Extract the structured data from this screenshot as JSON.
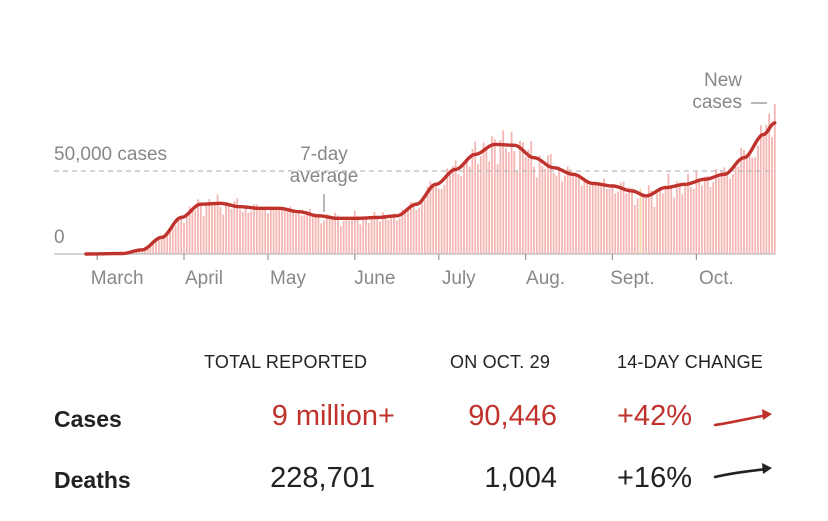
{
  "chart_data": {
    "type": "bar",
    "title": "",
    "xlabel": "",
    "ylabel": "",
    "ylim": [
      0,
      90000
    ],
    "y_gridline": {
      "value": 50000,
      "label": "50,000 cases"
    },
    "y_zero_label": "0",
    "x_tick_labels": [
      "March",
      "April",
      "May",
      "June",
      "July",
      "Aug.",
      "Sept.",
      "Oct."
    ],
    "annotations": {
      "avg_line": [
        "7-day",
        "average"
      ],
      "new_cases": [
        "New",
        "cases"
      ]
    },
    "series": [
      {
        "name": "New cases",
        "kind": "bar",
        "color": "#f4b6b3"
      },
      {
        "name": "7-day average",
        "kind": "line",
        "color": "#c0322c"
      }
    ],
    "avg_points": [
      [
        "2020-02-26",
        0
      ],
      [
        "2020-03-10",
        300
      ],
      [
        "2020-03-17",
        2500
      ],
      [
        "2020-03-24",
        10000
      ],
      [
        "2020-03-31",
        22000
      ],
      [
        "2020-04-07",
        30000
      ],
      [
        "2020-04-14",
        30500
      ],
      [
        "2020-04-21",
        28500
      ],
      [
        "2020-04-28",
        27500
      ],
      [
        "2020-05-05",
        27500
      ],
      [
        "2020-05-12",
        25500
      ],
      [
        "2020-05-19",
        23000
      ],
      [
        "2020-05-26",
        21500
      ],
      [
        "2020-06-02",
        21500
      ],
      [
        "2020-06-09",
        22000
      ],
      [
        "2020-06-16",
        23000
      ],
      [
        "2020-06-23",
        30000
      ],
      [
        "2020-06-30",
        42000
      ],
      [
        "2020-07-07",
        51000
      ],
      [
        "2020-07-14",
        60000
      ],
      [
        "2020-07-21",
        66000
      ],
      [
        "2020-07-28",
        65500
      ],
      [
        "2020-08-04",
        58000
      ],
      [
        "2020-08-11",
        52000
      ],
      [
        "2020-08-18",
        48000
      ],
      [
        "2020-08-25",
        42500
      ],
      [
        "2020-09-01",
        41000
      ],
      [
        "2020-09-08",
        38000
      ],
      [
        "2020-09-13",
        35000
      ],
      [
        "2020-09-20",
        40000
      ],
      [
        "2020-09-27",
        42000
      ],
      [
        "2020-10-04",
        45000
      ],
      [
        "2020-10-11",
        48000
      ],
      [
        "2020-10-18",
        58000
      ],
      [
        "2020-10-25",
        72000
      ],
      [
        "2020-10-29",
        79000
      ]
    ]
  },
  "stats": {
    "headers": {
      "total": "TOTAL REPORTED",
      "day": "ON OCT. 29",
      "change": "14-DAY CHANGE"
    },
    "rows": [
      {
        "label": "Cases",
        "total": "9 million+",
        "day": "90,446",
        "change": "+42%",
        "color": "#c0322c"
      },
      {
        "label": "Deaths",
        "total": "228,701",
        "day": "1,004",
        "change": "+16%",
        "color": "#222222"
      }
    ]
  }
}
